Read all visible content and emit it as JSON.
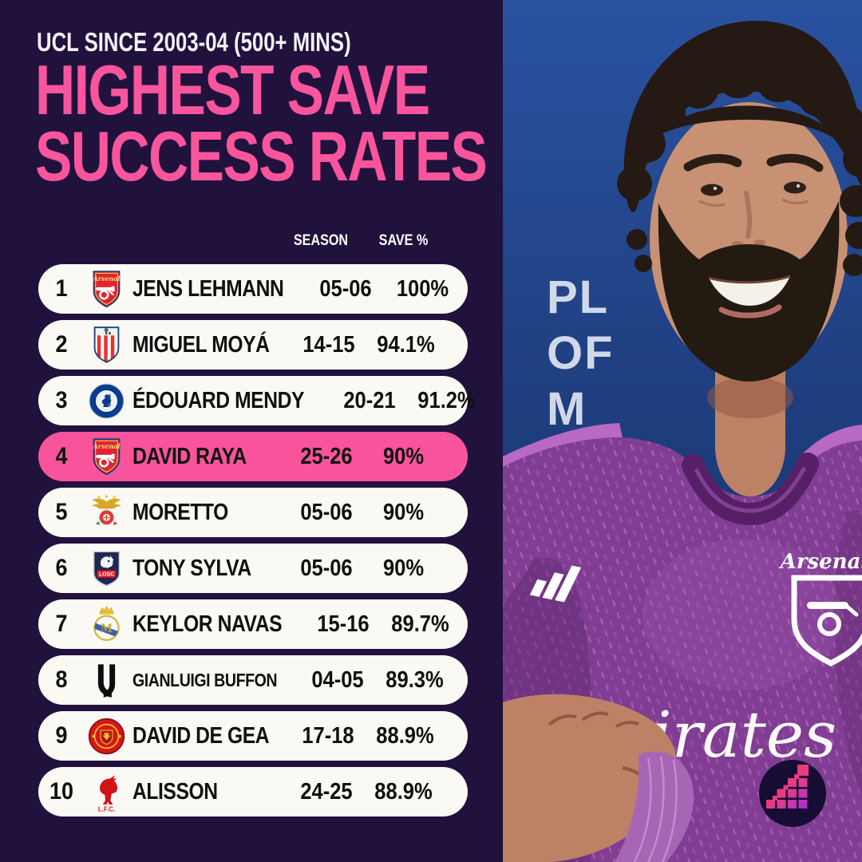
{
  "header": {
    "kicker": "UCL SINCE 2003-04 (500+ MINS)",
    "title_line1": "HIGHEST SAVE",
    "title_line2": "SUCCESS RATES"
  },
  "table": {
    "season_header": "SEASON",
    "save_header": "SAVE %",
    "rows": [
      {
        "rank": "1",
        "club": "arsenal",
        "club_name": "Arsenal",
        "player": "JENS LEHMANN",
        "season": "05-06",
        "save_pct": "100%",
        "highlight": false
      },
      {
        "rank": "2",
        "club": "atletico",
        "club_name": "Atlético Madrid",
        "player": "MIGUEL MOYÁ",
        "season": "14-15",
        "save_pct": "94.1%",
        "highlight": false
      },
      {
        "rank": "3",
        "club": "chelsea",
        "club_name": "Chelsea",
        "player": "ÉDOUARD MENDY",
        "season": "20-21",
        "save_pct": "91.2%",
        "highlight": false
      },
      {
        "rank": "4",
        "club": "arsenal",
        "club_name": "Arsenal",
        "player": "DAVID RAYA",
        "season": "25-26",
        "save_pct": "90%",
        "highlight": true
      },
      {
        "rank": "5",
        "club": "benfica",
        "club_name": "Benfica",
        "player": "MORETTO",
        "season": "05-06",
        "save_pct": "90%",
        "highlight": false
      },
      {
        "rank": "6",
        "club": "lille",
        "club_name": "LOSC Lille",
        "player": "TONY SYLVA",
        "season": "05-06",
        "save_pct": "90%",
        "highlight": false
      },
      {
        "rank": "7",
        "club": "real-madrid",
        "club_name": "Real Madrid",
        "player": "KEYLOR NAVAS",
        "season": "15-16",
        "save_pct": "89.7%",
        "highlight": false
      },
      {
        "rank": "8",
        "club": "juventus",
        "club_name": "Juventus",
        "player": "GIANLUIGI BUFFON",
        "season": "04-05",
        "save_pct": "89.3%",
        "highlight": false
      },
      {
        "rank": "9",
        "club": "man-united",
        "club_name": "Manchester United",
        "player": "DAVID DE GEA",
        "season": "17-18",
        "save_pct": "88.9%",
        "highlight": false
      },
      {
        "rank": "10",
        "club": "liverpool",
        "club_name": "Liverpool",
        "player": "ALISSON",
        "season": "24-25",
        "save_pct": "88.9%",
        "highlight": false
      }
    ]
  },
  "photo": {
    "backdrop_lines": [
      "PL",
      "OF",
      "M"
    ],
    "sponsor": "Emirates",
    "crest_label": "Arsenal"
  },
  "colors": {
    "background": "#20123C",
    "accent_pink": "#F9559D",
    "row_bg": "#FBF9F4",
    "highlight_row": "#F8549B",
    "text_dark": "#101010",
    "backdrop_blue": "#1E3C7C",
    "jersey_purple": "#7F3E92",
    "logo_navy": "#160C34"
  }
}
